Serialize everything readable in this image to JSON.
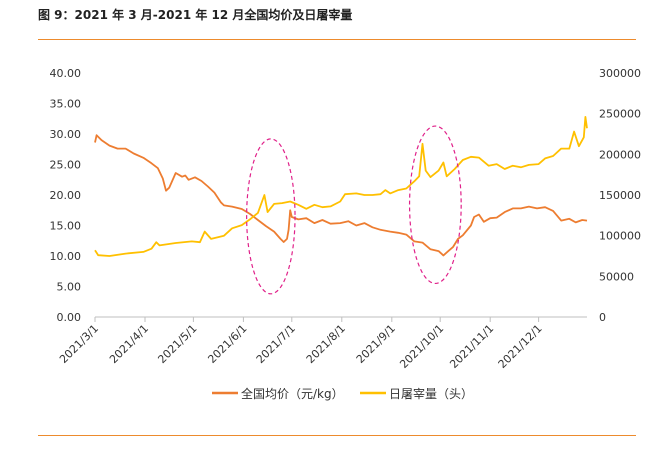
{
  "figure": {
    "title": "图 9：2021 年 3 月-2021 年 12 月全国均价及日屠宰量"
  },
  "colors": {
    "price": "#ED7D31",
    "slaughter": "#FFC000",
    "rule": "#ED8B2D",
    "axis": "#BFBFBF"
  },
  "chart_data": {
    "type": "line",
    "title": "",
    "x_ticks": [
      "2021/3/1",
      "2021/4/1",
      "2021/5/1",
      "2021/6/1",
      "2021/7/1",
      "2021/8/1",
      "2021/9/1",
      "2021/10/1",
      "2021/11/1",
      "2021/12/1"
    ],
    "x_range": [
      "2021/3/1",
      "2021/12/31"
    ],
    "y_left": {
      "range": [
        0,
        40
      ],
      "ticks": [
        "0.00",
        "5.00",
        "10.00",
        "15.00",
        "20.00",
        "25.00",
        "30.00",
        "35.00",
        "40.00"
      ]
    },
    "y_right": {
      "range": [
        0,
        300000
      ],
      "ticks": [
        "0",
        "50000",
        "100000",
        "150000",
        "200000",
        "250000",
        "300000"
      ]
    },
    "grid": false,
    "legend_position": "bottom",
    "series": [
      {
        "name": "全国均价（元/kg）",
        "axis": "left",
        "color": "#ED7D31",
        "points": [
          [
            "2021/3/1",
            28.6
          ],
          [
            "2021/3/2",
            29.8
          ],
          [
            "2021/3/5",
            29.0
          ],
          [
            "2021/3/10",
            28.1
          ],
          [
            "2021/3/15",
            27.6
          ],
          [
            "2021/3/20",
            27.6
          ],
          [
            "2021/3/25",
            26.8
          ],
          [
            "2021/3/31",
            26.1
          ],
          [
            "2021/4/5",
            25.2
          ],
          [
            "2021/4/9",
            24.4
          ],
          [
            "2021/4/12",
            22.7
          ],
          [
            "2021/4/14",
            20.7
          ],
          [
            "2021/4/16",
            21.2
          ],
          [
            "2021/4/20",
            23.6
          ],
          [
            "2021/4/24",
            23.0
          ],
          [
            "2021/4/26",
            23.2
          ],
          [
            "2021/4/28",
            22.5
          ],
          [
            "2021/5/2",
            22.9
          ],
          [
            "2021/5/6",
            22.3
          ],
          [
            "2021/5/10",
            21.4
          ],
          [
            "2021/5/14",
            20.4
          ],
          [
            "2021/5/18",
            18.8
          ],
          [
            "2021/5/20",
            18.3
          ],
          [
            "2021/5/25",
            18.1
          ],
          [
            "2021/5/31",
            17.7
          ],
          [
            "2021/6/5",
            16.9
          ],
          [
            "2021/6/10",
            15.9
          ],
          [
            "2021/6/15",
            14.9
          ],
          [
            "2021/6/20",
            14.0
          ],
          [
            "2021/6/24",
            12.8
          ],
          [
            "2021/6/26",
            12.3
          ],
          [
            "2021/6/28",
            12.8
          ],
          [
            "2021/6/29",
            14.3
          ],
          [
            "2021/6/30",
            17.5
          ],
          [
            "2021/7/1",
            16.4
          ],
          [
            "2021/7/5",
            16.0
          ],
          [
            "2021/7/10",
            16.2
          ],
          [
            "2021/7/15",
            15.4
          ],
          [
            "2021/7/20",
            15.9
          ],
          [
            "2021/7/25",
            15.3
          ],
          [
            "2021/7/31",
            15.4
          ],
          [
            "2021/8/5",
            15.7
          ],
          [
            "2021/8/10",
            15.0
          ],
          [
            "2021/8/15",
            15.4
          ],
          [
            "2021/8/20",
            14.7
          ],
          [
            "2021/8/25",
            14.3
          ],
          [
            "2021/8/31",
            14.0
          ],
          [
            "2021/9/5",
            13.8
          ],
          [
            "2021/9/10",
            13.5
          ],
          [
            "2021/9/15",
            12.4
          ],
          [
            "2021/9/20",
            12.2
          ],
          [
            "2021/9/25",
            11.1
          ],
          [
            "2021/9/30",
            10.8
          ],
          [
            "2021/10/3",
            10.1
          ],
          [
            "2021/10/6",
            10.8
          ],
          [
            "2021/10/9",
            11.5
          ],
          [
            "2021/10/12",
            12.8
          ],
          [
            "2021/10/15",
            13.4
          ],
          [
            "2021/10/20",
            15.0
          ],
          [
            "2021/10/22",
            16.4
          ],
          [
            "2021/10/25",
            16.8
          ],
          [
            "2021/10/28",
            15.6
          ],
          [
            "2021/11/1",
            16.2
          ],
          [
            "2021/11/5",
            16.3
          ],
          [
            "2021/11/10",
            17.2
          ],
          [
            "2021/11/15",
            17.8
          ],
          [
            "2021/11/20",
            17.8
          ],
          [
            "2021/11/25",
            18.1
          ],
          [
            "2021/11/30",
            17.8
          ],
          [
            "2021/12/5",
            18.0
          ],
          [
            "2021/12/10",
            17.4
          ],
          [
            "2021/12/15",
            15.8
          ],
          [
            "2021/12/20",
            16.1
          ],
          [
            "2021/12/24",
            15.5
          ],
          [
            "2021/12/28",
            15.9
          ],
          [
            "2021/12/31",
            15.8
          ]
        ]
      },
      {
        "name": "日屠宰量（头）",
        "axis": "right",
        "color": "#FFC000",
        "points": [
          [
            "2021/3/1",
            82000
          ],
          [
            "2021/3/3",
            76000
          ],
          [
            "2021/3/10",
            75000
          ],
          [
            "2021/3/20",
            78000
          ],
          [
            "2021/3/31",
            80000
          ],
          [
            "2021/4/5",
            84000
          ],
          [
            "2021/4/8",
            92000
          ],
          [
            "2021/4/10",
            88000
          ],
          [
            "2021/4/20",
            91000
          ],
          [
            "2021/4/30",
            93000
          ],
          [
            "2021/5/5",
            92000
          ],
          [
            "2021/5/8",
            105000
          ],
          [
            "2021/5/12",
            96000
          ],
          [
            "2021/5/20",
            100000
          ],
          [
            "2021/5/25",
            109000
          ],
          [
            "2021/5/31",
            113000
          ],
          [
            "2021/6/5",
            120000
          ],
          [
            "2021/6/10",
            128000
          ],
          [
            "2021/6/14",
            150000
          ],
          [
            "2021/6/16",
            129000
          ],
          [
            "2021/6/20",
            139000
          ],
          [
            "2021/6/25",
            140000
          ],
          [
            "2021/6/30",
            142000
          ],
          [
            "2021/7/5",
            138000
          ],
          [
            "2021/7/10",
            133000
          ],
          [
            "2021/7/15",
            138000
          ],
          [
            "2021/7/20",
            135000
          ],
          [
            "2021/7/25",
            136000
          ],
          [
            "2021/7/31",
            142000
          ],
          [
            "2021/8/3",
            151000
          ],
          [
            "2021/8/10",
            152000
          ],
          [
            "2021/8/15",
            150000
          ],
          [
            "2021/8/20",
            150000
          ],
          [
            "2021/8/25",
            151000
          ],
          [
            "2021/8/28",
            156000
          ],
          [
            "2021/8/31",
            152000
          ],
          [
            "2021/9/5",
            156000
          ],
          [
            "2021/9/10",
            158000
          ],
          [
            "2021/9/15",
            167000
          ],
          [
            "2021/9/18",
            173000
          ],
          [
            "2021/9/20",
            213000
          ],
          [
            "2021/9/22",
            180000
          ],
          [
            "2021/9/25",
            172000
          ],
          [
            "2021/9/30",
            180000
          ],
          [
            "2021/10/3",
            190000
          ],
          [
            "2021/10/5",
            173000
          ],
          [
            "2021/10/10",
            182000
          ],
          [
            "2021/10/15",
            193000
          ],
          [
            "2021/10/20",
            197000
          ],
          [
            "2021/10/25",
            196000
          ],
          [
            "2021/10/31",
            186000
          ],
          [
            "2021/11/5",
            188000
          ],
          [
            "2021/11/10",
            182000
          ],
          [
            "2021/11/15",
            186000
          ],
          [
            "2021/11/20",
            184000
          ],
          [
            "2021/11/25",
            187000
          ],
          [
            "2021/12/1",
            188000
          ],
          [
            "2021/12/5",
            195000
          ],
          [
            "2021/12/10",
            198000
          ],
          [
            "2021/12/15",
            207000
          ],
          [
            "2021/12/20",
            207000
          ],
          [
            "2021/12/23",
            228000
          ],
          [
            "2021/12/26",
            210000
          ],
          [
            "2021/12/29",
            221000
          ],
          [
            "2021/12/30",
            246000
          ],
          [
            "2021/12/31",
            232000
          ]
        ]
      }
    ],
    "highlight_ellipses": [
      {
        "x_center": "2021/6/18",
        "x_half_days": 15,
        "y_top": 29.2,
        "y_bottom": 3.8
      },
      {
        "x_center": "2021/9/28",
        "x_half_days": 16,
        "y_top": 31.3,
        "y_bottom": 5.5
      }
    ]
  }
}
